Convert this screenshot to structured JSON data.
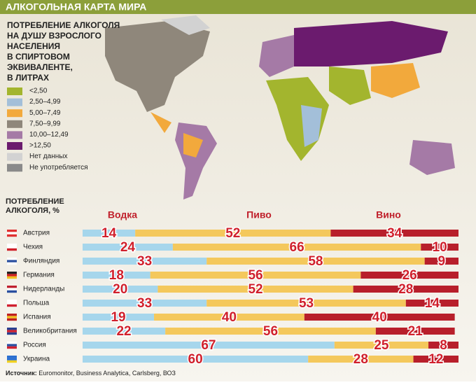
{
  "title": "АЛКОГОЛЬНАЯ КАРТА МИРА",
  "map": {
    "title": [
      "ПОТРЕБЛЕНИЕ АЛКОГОЛЯ",
      "НА ДУШУ ВЗРОСЛОГО",
      "НАСЕЛЕНИЯ",
      "В СПИРТОВОМ",
      "ЭКВИВАЛЕНТЕ,",
      "В ЛИТРАХ"
    ],
    "legend": [
      {
        "label": "<2,50",
        "color": "#a3b52e"
      },
      {
        "label": "2,50–4,99",
        "color": "#a3bfd9"
      },
      {
        "label": "5,00–7,49",
        "color": "#f2a93c"
      },
      {
        "label": "7,50–9,99",
        "color": "#8f877b"
      },
      {
        "label": "10,00–12,49",
        "color": "#a57aa6"
      },
      {
        "label": ">12,50",
        "color": "#6b1b6e"
      },
      {
        "label": "Нет данных",
        "color": "#d2d2d2"
      },
      {
        "label": "Не употребляется",
        "color": "#8a8a8a"
      }
    ]
  },
  "chart_data": {
    "type": "bar",
    "orientation": "horizontal",
    "stacked": true,
    "title": [
      "ПОТРЕБЛЕНИЕ",
      "АЛКОГОЛЯ, %"
    ],
    "categories": [
      "Австрия",
      "Чехия",
      "Финляндия",
      "Германия",
      "Нидерланды",
      "Польша",
      "Испания",
      "Великобритания",
      "Россия",
      "Украина"
    ],
    "xlim": [
      0,
      100
    ],
    "series": [
      {
        "name": "Водка",
        "color": "#a6d6ec",
        "values": [
          14,
          24,
          33,
          18,
          20,
          33,
          19,
          22,
          67,
          60
        ]
      },
      {
        "name": "Пиво",
        "color": "#f4c85c",
        "values": [
          52,
          66,
          58,
          56,
          52,
          53,
          40,
          56,
          25,
          28
        ]
      },
      {
        "name": "Вино",
        "color": "#b81f2b",
        "values": [
          34,
          10,
          9,
          26,
          28,
          14,
          40,
          21,
          8,
          12
        ]
      }
    ]
  },
  "source": {
    "label": "Источник:",
    "text": "Euromonitor, Business Analytica,  Carlsberg, ВОЗ"
  }
}
